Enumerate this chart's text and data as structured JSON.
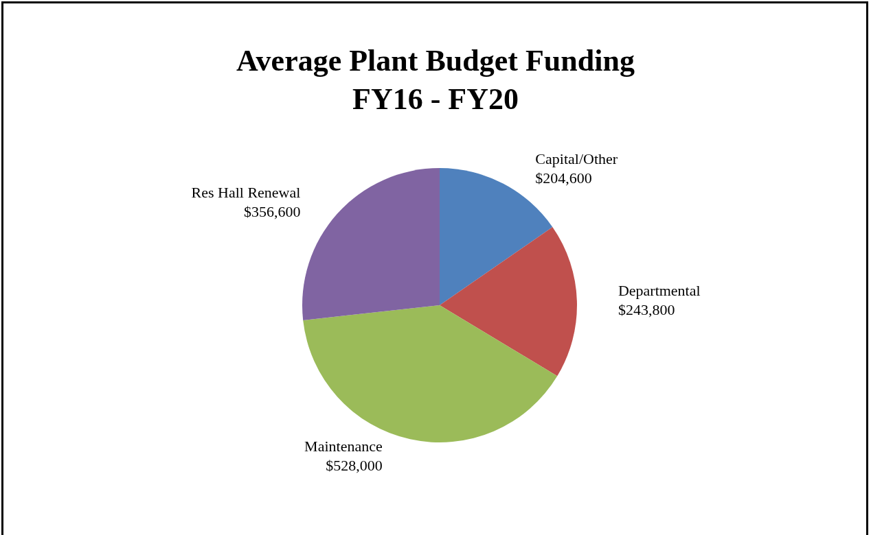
{
  "chart_data": {
    "type": "pie",
    "title": "Average Plant Budget Funding\nFY16 - FY20",
    "categories": [
      "Capital/Other",
      "Departmental",
      "Maintenance",
      "Res Hall Renewal"
    ],
    "values": [
      204600,
      243800,
      528000,
      356600
    ],
    "value_labels": [
      "$204,600",
      "$243,800",
      "$528,000",
      "$356,600"
    ],
    "colors": [
      "#4f81bd",
      "#c0504d",
      "#9bbb59",
      "#8064a2"
    ]
  }
}
